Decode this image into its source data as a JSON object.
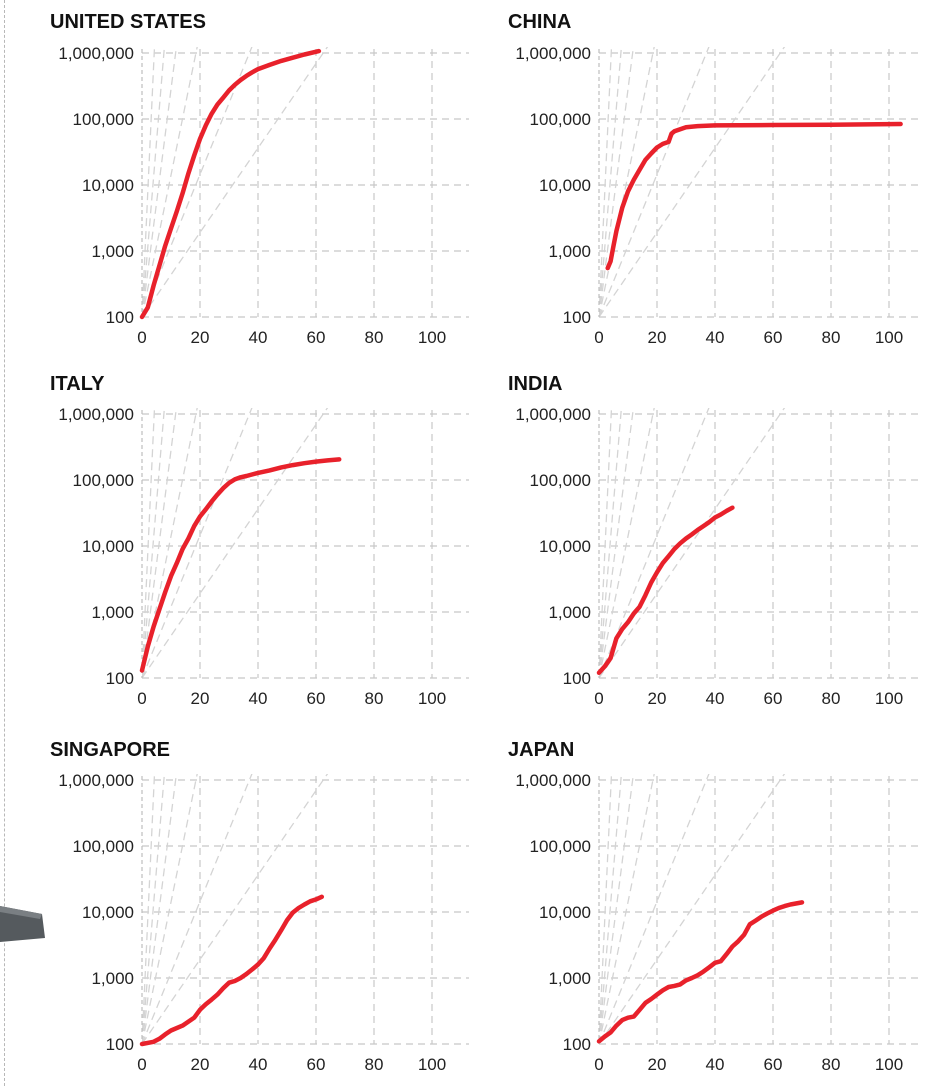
{
  "colors": {
    "series": "#e8212b",
    "grid": "#c8c8c8",
    "reference": "#d4d4d4",
    "text": "#222222"
  },
  "chart_data": [
    {
      "type": "line",
      "title": "UNITED STATES",
      "x_ticks": [
        "0",
        "20",
        "40",
        "60",
        "80",
        "100"
      ],
      "y_ticks": [
        "100",
        "1,000",
        "10,000",
        "100,000",
        "1,000,000"
      ],
      "xlim": [
        0,
        115
      ],
      "ylim": [
        100,
        1000000
      ],
      "y_scale": "log",
      "grid": true,
      "series": [
        {
          "points": [
            [
              0,
              100
            ],
            [
              2,
              140
            ],
            [
              4,
              300
            ],
            [
              6,
              600
            ],
            [
              8,
              1200
            ],
            [
              10,
              2200
            ],
            [
              12,
              4000
            ],
            [
              14,
              7500
            ],
            [
              16,
              15000
            ],
            [
              18,
              28000
            ],
            [
              20,
              50000
            ],
            [
              22,
              80000
            ],
            [
              24,
              120000
            ],
            [
              26,
              165000
            ],
            [
              28,
              210000
            ],
            [
              30,
              270000
            ],
            [
              32,
              330000
            ],
            [
              34,
              390000
            ],
            [
              36,
              450000
            ],
            [
              38,
              510000
            ],
            [
              40,
              570000
            ],
            [
              44,
              660000
            ],
            [
              48,
              760000
            ],
            [
              52,
              850000
            ],
            [
              56,
              950000
            ],
            [
              61,
              1070000
            ]
          ]
        }
      ]
    },
    {
      "type": "line",
      "title": "CHINA",
      "x_ticks": [
        "0",
        "20",
        "40",
        "60",
        "80",
        "100"
      ],
      "y_ticks": [
        "100",
        "1,000",
        "10,000",
        "100,000",
        "1,000,000"
      ],
      "xlim": [
        0,
        115
      ],
      "ylim": [
        100,
        1000000
      ],
      "y_scale": "log",
      "grid": true,
      "series": [
        {
          "points": [
            [
              3,
              550
            ],
            [
              4,
              700
            ],
            [
              5,
              1200
            ],
            [
              6,
              2000
            ],
            [
              7,
              3000
            ],
            [
              8,
              4500
            ],
            [
              9,
              6000
            ],
            [
              10,
              8000
            ],
            [
              12,
              12000
            ],
            [
              14,
              17000
            ],
            [
              16,
              24000
            ],
            [
              18,
              30000
            ],
            [
              20,
              37000
            ],
            [
              22,
              42000
            ],
            [
              24,
              45000
            ],
            [
              25,
              60000
            ],
            [
              26,
              65000
            ],
            [
              28,
              70000
            ],
            [
              30,
              75000
            ],
            [
              34,
              78000
            ],
            [
              40,
              80000
            ],
            [
              60,
              81000
            ],
            [
              80,
              82000
            ],
            [
              104,
              84000
            ]
          ]
        }
      ]
    },
    {
      "type": "line",
      "title": "ITALY",
      "x_ticks": [
        "0",
        "20",
        "40",
        "60",
        "80",
        "100"
      ],
      "y_ticks": [
        "100",
        "1,000",
        "10,000",
        "100,000",
        "1,000,000"
      ],
      "xlim": [
        0,
        115
      ],
      "ylim": [
        100,
        1000000
      ],
      "y_scale": "log",
      "grid": true,
      "series": [
        {
          "points": [
            [
              0,
              130
            ],
            [
              2,
              300
            ],
            [
              4,
              600
            ],
            [
              6,
              1100
            ],
            [
              8,
              2000
            ],
            [
              10,
              3500
            ],
            [
              12,
              5500
            ],
            [
              14,
              9000
            ],
            [
              16,
              13000
            ],
            [
              18,
              20000
            ],
            [
              20,
              28000
            ],
            [
              22,
              36000
            ],
            [
              24,
              47000
            ],
            [
              26,
              60000
            ],
            [
              28,
              75000
            ],
            [
              30,
              90000
            ],
            [
              32,
              102000
            ],
            [
              34,
              110000
            ],
            [
              36,
              115000
            ],
            [
              40,
              128000
            ],
            [
              44,
              140000
            ],
            [
              48,
              155000
            ],
            [
              52,
              168000
            ],
            [
              56,
              180000
            ],
            [
              60,
              190000
            ],
            [
              64,
              198000
            ],
            [
              68,
              205000
            ]
          ]
        }
      ]
    },
    {
      "type": "line",
      "title": "INDIA",
      "x_ticks": [
        "0",
        "20",
        "40",
        "60",
        "80",
        "100"
      ],
      "y_ticks": [
        "100",
        "1,000",
        "10,000",
        "100,000",
        "1,000,000"
      ],
      "xlim": [
        0,
        115
      ],
      "ylim": [
        100,
        1000000
      ],
      "y_scale": "log",
      "grid": true,
      "series": [
        {
          "points": [
            [
              0,
              120
            ],
            [
              2,
              150
            ],
            [
              4,
              200
            ],
            [
              6,
              400
            ],
            [
              8,
              550
            ],
            [
              10,
              700
            ],
            [
              12,
              950
            ],
            [
              14,
              1200
            ],
            [
              16,
              1800
            ],
            [
              18,
              2800
            ],
            [
              20,
              4000
            ],
            [
              22,
              5500
            ],
            [
              24,
              7000
            ],
            [
              26,
              9000
            ],
            [
              28,
              11000
            ],
            [
              30,
              13000
            ],
            [
              32,
              15000
            ],
            [
              34,
              17500
            ],
            [
              36,
              20000
            ],
            [
              38,
              23000
            ],
            [
              40,
              27000
            ],
            [
              42,
              30000
            ],
            [
              44,
              34000
            ],
            [
              46,
              38000
            ]
          ]
        }
      ]
    },
    {
      "type": "line",
      "title": "SINGAPORE",
      "x_ticks": [
        "0",
        "20",
        "40",
        "60",
        "80",
        "100"
      ],
      "y_ticks": [
        "100",
        "1,000",
        "10,000",
        "100,000",
        "1,000,000"
      ],
      "xlim": [
        0,
        115
      ],
      "ylim": [
        100,
        1000000
      ],
      "y_scale": "log",
      "grid": true,
      "series": [
        {
          "points": [
            [
              0,
              100
            ],
            [
              4,
              108
            ],
            [
              6,
              120
            ],
            [
              8,
              140
            ],
            [
              10,
              160
            ],
            [
              14,
              190
            ],
            [
              18,
              250
            ],
            [
              20,
              330
            ],
            [
              22,
              400
            ],
            [
              24,
              470
            ],
            [
              26,
              560
            ],
            [
              28,
              700
            ],
            [
              30,
              850
            ],
            [
              32,
              900
            ],
            [
              34,
              1000
            ],
            [
              36,
              1150
            ],
            [
              38,
              1350
            ],
            [
              40,
              1600
            ],
            [
              42,
              2000
            ],
            [
              44,
              2800
            ],
            [
              46,
              3800
            ],
            [
              48,
              5300
            ],
            [
              50,
              7500
            ],
            [
              52,
              9800
            ],
            [
              54,
              11500
            ],
            [
              56,
              13000
            ],
            [
              58,
              14500
            ],
            [
              60,
              15500
            ],
            [
              62,
              17000
            ]
          ]
        }
      ]
    },
    {
      "type": "line",
      "title": "JAPAN",
      "x_ticks": [
        "0",
        "20",
        "40",
        "60",
        "80",
        "100"
      ],
      "y_ticks": [
        "100",
        "1,000",
        "10,000",
        "100,000",
        "1,000,000"
      ],
      "xlim": [
        0,
        115
      ],
      "ylim": [
        100,
        1000000
      ],
      "y_scale": "log",
      "grid": true,
      "series": [
        {
          "points": [
            [
              0,
              110
            ],
            [
              2,
              130
            ],
            [
              4,
              150
            ],
            [
              6,
              190
            ],
            [
              8,
              230
            ],
            [
              10,
              250
            ],
            [
              12,
              260
            ],
            [
              14,
              330
            ],
            [
              16,
              420
            ],
            [
              18,
              480
            ],
            [
              20,
              560
            ],
            [
              22,
              650
            ],
            [
              24,
              730
            ],
            [
              26,
              760
            ],
            [
              28,
              800
            ],
            [
              30,
              920
            ],
            [
              32,
              1000
            ],
            [
              34,
              1100
            ],
            [
              36,
              1250
            ],
            [
              38,
              1450
            ],
            [
              40,
              1700
            ],
            [
              42,
              1800
            ],
            [
              44,
              2300
            ],
            [
              46,
              3000
            ],
            [
              48,
              3600
            ],
            [
              50,
              4500
            ],
            [
              52,
              6500
            ],
            [
              54,
              7400
            ],
            [
              56,
              8500
            ],
            [
              58,
              9500
            ],
            [
              60,
              10500
            ],
            [
              62,
              11500
            ],
            [
              64,
              12300
            ],
            [
              66,
              13000
            ],
            [
              70,
              14000
            ]
          ]
        }
      ]
    }
  ]
}
